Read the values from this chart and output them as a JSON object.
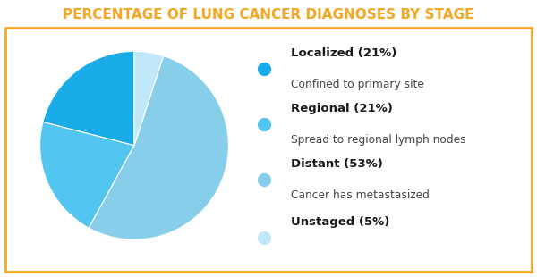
{
  "title": "PERCENTAGE OF LUNG CANCER DIAGNOSES BY STAGE",
  "title_color": "#F5A623",
  "title_fontsize": 11,
  "slices": [
    21,
    21,
    53,
    5
  ],
  "colors": [
    "#1AACE8",
    "#52C5F0",
    "#87CEEB",
    "#C0E8F8"
  ],
  "labels": [
    "Localized (21%)",
    "Regional (21%)",
    "Distant (53%)",
    "Unstaged (5%)"
  ],
  "sublabels": [
    "Confined to primary site",
    "Spread to regional lymph nodes",
    "Cancer has metastasized",
    ""
  ],
  "startangle": 90,
  "border_color": "#F5A623",
  "background_color": "#FFFFFF",
  "legend_label_fontsize": 9.5,
  "legend_sublabel_fontsize": 8.8,
  "legend_label_color": "#1a1a1a",
  "legend_sublabel_color": "#444444"
}
